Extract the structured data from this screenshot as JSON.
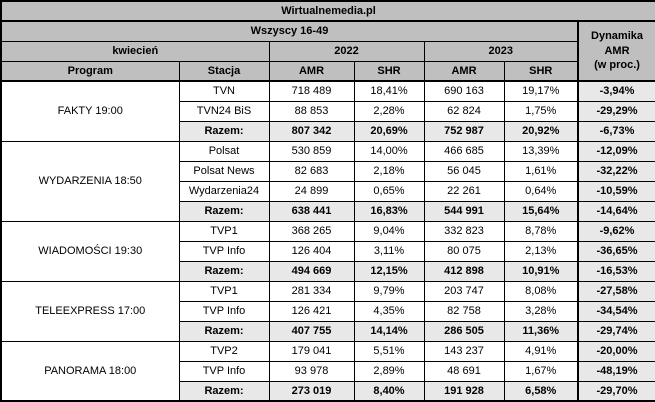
{
  "styles": {
    "header_bg": "#bfbfbf",
    "shaded_bg": "#e8e8e8",
    "cell_bg": "#ffffff",
    "border_color": "#000000",
    "text_color": "#000000"
  },
  "chart_data": {
    "type": "table",
    "title": "Wirtualnemedia.pl",
    "audience": "Wszyscy 16-49",
    "month": "kwiecień",
    "years": [
      "2022",
      "2023"
    ],
    "columns": {
      "program": "Program",
      "station": "Stacja",
      "amr": "AMR",
      "shr": "SHR"
    },
    "dynamics_header": "Dynamika\nAMR\n(w proc.)",
    "groups": [
      {
        "program": "FAKTY 19:00",
        "rows": [
          {
            "station": "TVN",
            "amr_2022": "718 489",
            "shr_2022": "18,41%",
            "amr_2023": "690 163",
            "shr_2023": "19,17%",
            "dynamics": "-3,94%"
          },
          {
            "station": "TVN24 BiS",
            "amr_2022": "88 853",
            "shr_2022": "2,28%",
            "amr_2023": "62 824",
            "shr_2023": "1,75%",
            "dynamics": "-29,29%"
          },
          {
            "station": "Razem:",
            "amr_2022": "807 342",
            "shr_2022": "20,69%",
            "amr_2023": "752 987",
            "shr_2023": "20,92%",
            "dynamics": "-6,73%"
          }
        ]
      },
      {
        "program": "WYDARZENIA 18:50",
        "rows": [
          {
            "station": "Polsat",
            "amr_2022": "530 859",
            "shr_2022": "14,00%",
            "amr_2023": "466 685",
            "shr_2023": "13,39%",
            "dynamics": "-12,09%"
          },
          {
            "station": "Polsat News",
            "amr_2022": "82 683",
            "shr_2022": "2,18%",
            "amr_2023": "56 045",
            "shr_2023": "1,61%",
            "dynamics": "-32,22%"
          },
          {
            "station": "Wydarzenia24",
            "amr_2022": "24 899",
            "shr_2022": "0,65%",
            "amr_2023": "22 261",
            "shr_2023": "0,64%",
            "dynamics": "-10,59%"
          },
          {
            "station": "Razem:",
            "amr_2022": "638 441",
            "shr_2022": "16,83%",
            "amr_2023": "544 991",
            "shr_2023": "15,64%",
            "dynamics": "-14,64%"
          }
        ]
      },
      {
        "program": "WIADOMOŚCI 19:30",
        "rows": [
          {
            "station": "TVP1",
            "amr_2022": "368 265",
            "shr_2022": "9,04%",
            "amr_2023": "332 823",
            "shr_2023": "8,78%",
            "dynamics": "-9,62%"
          },
          {
            "station": "TVP Info",
            "amr_2022": "126 404",
            "shr_2022": "3,11%",
            "amr_2023": "80 075",
            "shr_2023": "2,13%",
            "dynamics": "-36,65%"
          },
          {
            "station": "Razem:",
            "amr_2022": "494 669",
            "shr_2022": "12,15%",
            "amr_2023": "412 898",
            "shr_2023": "10,91%",
            "dynamics": "-16,53%"
          }
        ]
      },
      {
        "program": "TELEEXPRESS 17:00",
        "rows": [
          {
            "station": "TVP1",
            "amr_2022": "281 334",
            "shr_2022": "9,79%",
            "amr_2023": "203 747",
            "shr_2023": "8,08%",
            "dynamics": "-27,58%"
          },
          {
            "station": "TVP Info",
            "amr_2022": "126 421",
            "shr_2022": "4,35%",
            "amr_2023": "82 758",
            "shr_2023": "3,28%",
            "dynamics": "-34,54%"
          },
          {
            "station": "Razem:",
            "amr_2022": "407 755",
            "shr_2022": "14,14%",
            "amr_2023": "286 505",
            "shr_2023": "11,36%",
            "dynamics": "-29,74%"
          }
        ]
      },
      {
        "program": "PANORAMA 18:00",
        "rows": [
          {
            "station": "TVP2",
            "amr_2022": "179 041",
            "shr_2022": "5,51%",
            "amr_2023": "143 237",
            "shr_2023": "4,91%",
            "dynamics": "-20,00%"
          },
          {
            "station": "TVP Info",
            "amr_2022": "93 978",
            "shr_2022": "2,89%",
            "amr_2023": "48 691",
            "shr_2023": "1,67%",
            "dynamics": "-48,19%"
          },
          {
            "station": "Razem:",
            "amr_2022": "273 019",
            "shr_2022": "8,40%",
            "amr_2023": "191 928",
            "shr_2023": "6,58%",
            "dynamics": "-29,70%"
          }
        ]
      }
    ]
  }
}
